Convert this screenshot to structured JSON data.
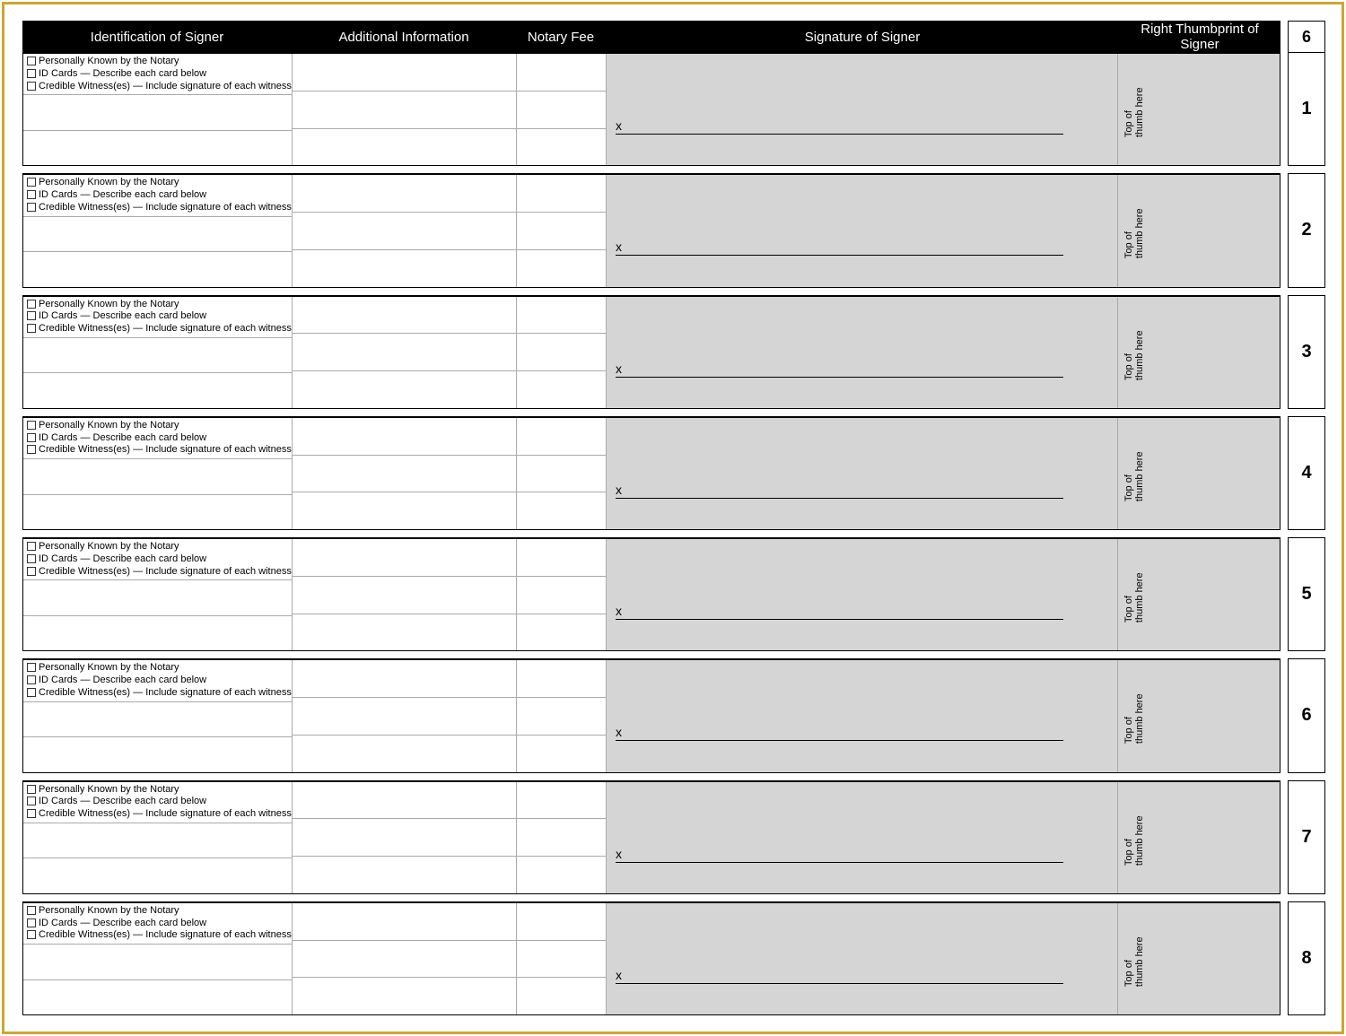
{
  "frame_border_color": "#c9a832",
  "header_bg": "#000000",
  "header_fg": "#ffffff",
  "gray_fill": "#d5d5d5",
  "page_number_top": "6",
  "columns": {
    "id": "Identification of Signer",
    "info": "Additional Information",
    "fee": "Notary Fee",
    "sig": "Signature of Signer",
    "thumb": "Right Thumbprint of Signer"
  },
  "check_options": {
    "opt1": "Personally Known by the Notary",
    "opt2": "ID Cards — Describe each card below",
    "opt3": "Credible Witness(es) — Include signature of each witness"
  },
  "signature_mark": "x",
  "thumb_hint": "Top of thumb here",
  "row_numbers": [
    "1",
    "2",
    "3",
    "4",
    "5",
    "6",
    "7",
    "8"
  ],
  "row_count": 8
}
